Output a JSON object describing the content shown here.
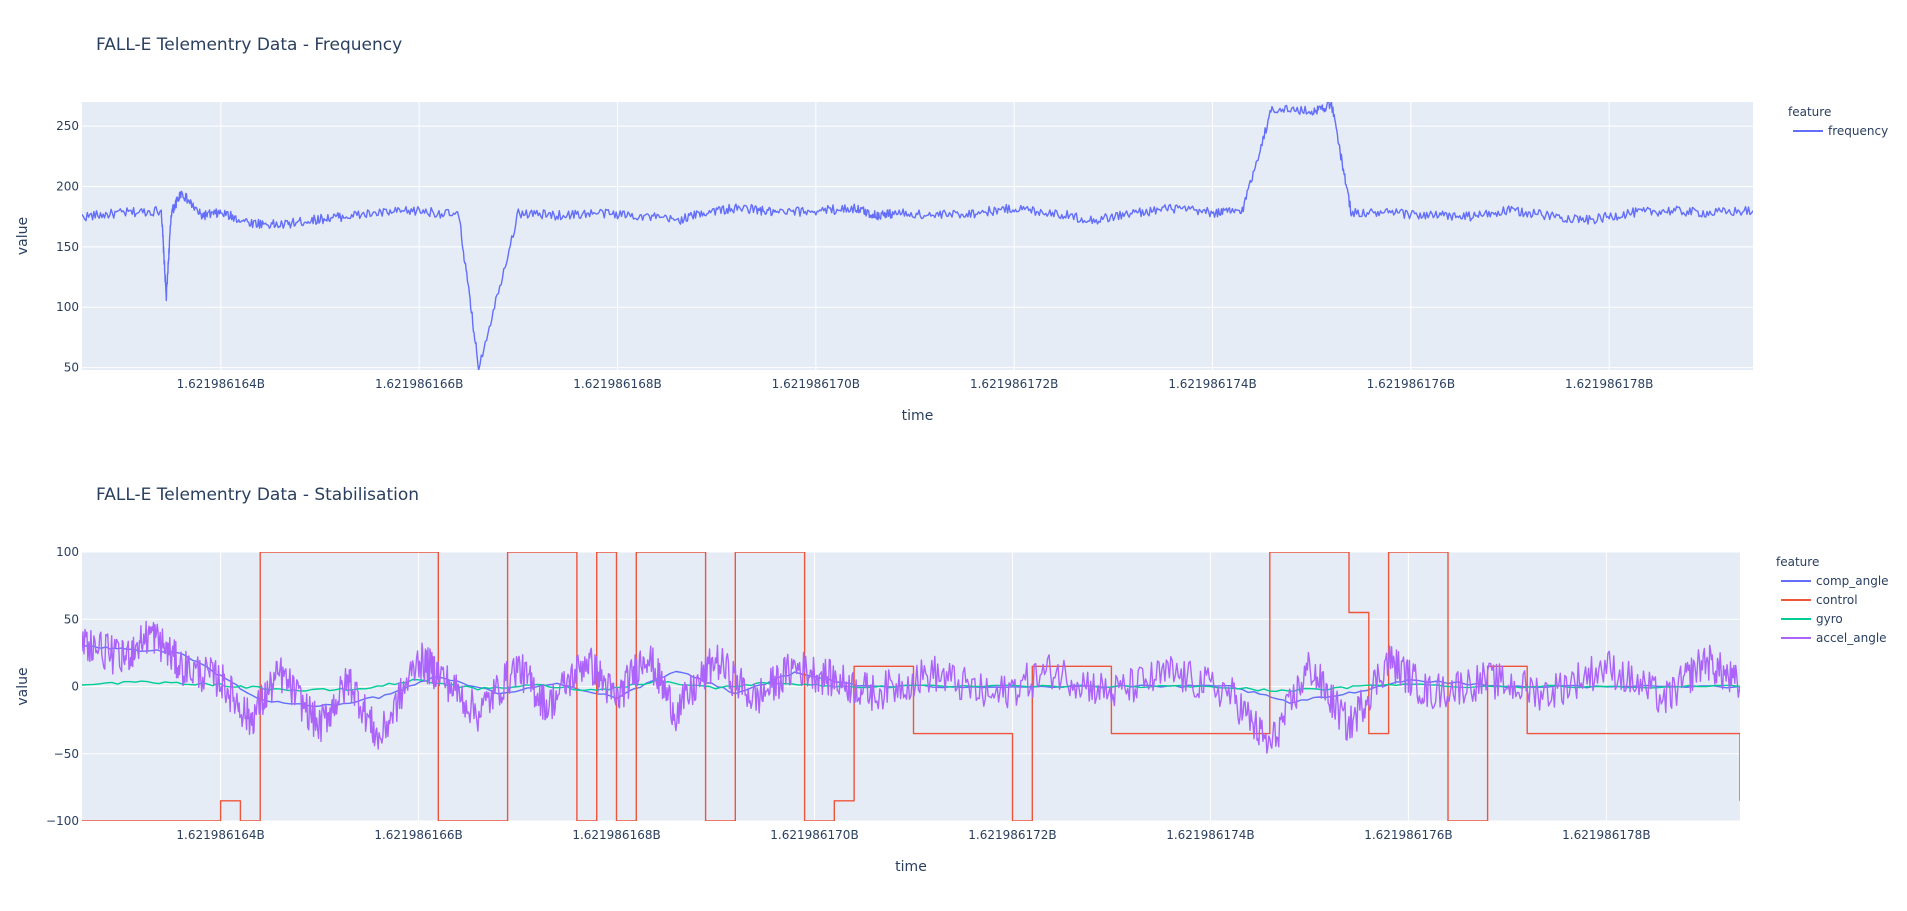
{
  "chart_data": [
    {
      "type": "line",
      "title": "FALL-E Telementry Data - Frequency",
      "xlabel": "time",
      "ylabel": "value",
      "xlim": [
        1621986162.6,
        1621986179.45
      ],
      "ylim": [
        48,
        270
      ],
      "x_ticks": [
        1621986164,
        1621986166,
        1621986168,
        1621986170,
        1621986172,
        1621986174,
        1621986176,
        1621986178
      ],
      "x_tick_labels": [
        "1.621986164B",
        "1.621986166B",
        "1.621986168B",
        "1.621986170B",
        "1.621986172B",
        "1.621986174B",
        "1.621986176B",
        "1.621986178B"
      ],
      "y_ticks": [
        50,
        100,
        150,
        200,
        250
      ],
      "y_tick_labels": [
        "50",
        "100",
        "150",
        "200",
        "250"
      ],
      "grid": true,
      "legend": {
        "title": "feature",
        "placement": "top-right"
      },
      "series": [
        {
          "name": "frequency",
          "color": "#636efa",
          "x": [
            1621986162.6,
            1621986163.0,
            1621986163.4,
            1621986163.45,
            1621986163.5,
            1621986163.6,
            1621986163.8,
            1621986164.0,
            1621986164.3,
            1621986164.6,
            1621986164.9,
            1621986165.2,
            1621986165.6,
            1621986166.0,
            1621986166.4,
            1621986166.6,
            1621986167.0,
            1621986167.4,
            1621986167.8,
            1621986168.2,
            1621986168.6,
            1621986168.95,
            1621986169.3,
            1621986169.6,
            1621986170.0,
            1621986170.4,
            1621986170.6,
            1621986170.8,
            1621986171.2,
            1621986171.6,
            1621986172.0,
            1621986172.4,
            1621986172.8,
            1621986173.2,
            1621986173.6,
            1621986174.0,
            1621986174.3,
            1621986174.6,
            1621986175.0,
            1621986175.2,
            1621986175.4,
            1621986175.8,
            1621986176.2,
            1621986176.6,
            1621986177.0,
            1621986177.4,
            1621986177.8,
            1621986178.2,
            1621986178.6,
            1621986179.0,
            1621986179.45
          ],
          "y": [
            175,
            178,
            180,
            108,
            178,
            195,
            176,
            178,
            170,
            168,
            172,
            175,
            178,
            180,
            176,
            50,
            178,
            176,
            178,
            176,
            172,
            180,
            182,
            178,
            180,
            182,
            176,
            178,
            176,
            178,
            182,
            178,
            172,
            178,
            182,
            178,
            180,
            265,
            262,
            268,
            178,
            178,
            176,
            175,
            180,
            176,
            172,
            178,
            180,
            178,
            180
          ]
        }
      ]
    },
    {
      "type": "line",
      "title": "FALL-E Telementry Data - Stabilisation",
      "xlabel": "time",
      "ylabel": "value",
      "xlim": [
        1621986162.6,
        1621986179.35
      ],
      "ylim": [
        -100,
        100
      ],
      "x_ticks": [
        1621986164,
        1621986166,
        1621986168,
        1621986170,
        1621986172,
        1621986174,
        1621986176,
        1621986178
      ],
      "x_tick_labels": [
        "1.621986164B",
        "1.621986166B",
        "1.621986168B",
        "1.621986170B",
        "1.621986172B",
        "1.621986174B",
        "1.621986176B",
        "1.621986178B"
      ],
      "y_ticks": [
        -100,
        -50,
        0,
        50,
        100
      ],
      "y_tick_labels": [
        "−100",
        "−50",
        "0",
        "50",
        "100"
      ],
      "grid": true,
      "legend": {
        "title": "feature",
        "placement": "top-right"
      },
      "series": [
        {
          "name": "comp_angle",
          "color": "#636efa",
          "x": [
            1621986162.6,
            1621986163.0,
            1621986163.6,
            1621986164.0,
            1621986164.4,
            1621986165.0,
            1621986165.6,
            1621986166.2,
            1621986166.8,
            1621986167.4,
            1621986168.0,
            1621986168.6,
            1621986169.2,
            1621986169.8,
            1621986170.5,
            1621986171.5,
            1621986172.5,
            1621986173.5,
            1621986174.2,
            1621986174.8,
            1621986175.4,
            1621986176.0,
            1621986177.0,
            1621986178.0,
            1621986179.35
          ],
          "y": [
            30,
            28,
            25,
            8,
            -10,
            -15,
            -8,
            8,
            -5,
            2,
            -8,
            12,
            -5,
            10,
            0,
            0,
            0,
            0,
            0,
            -12,
            -5,
            5,
            0,
            0,
            0
          ]
        },
        {
          "name": "control",
          "color": "#EF553B",
          "x": [
            1621986162.6,
            1621986163.9,
            1621986164.0,
            1621986164.2,
            1621986164.4,
            1621986165.0,
            1621986165.6,
            1621986166.05,
            1621986166.2,
            1621986166.5,
            1621986166.9,
            1621986167.4,
            1621986167.6,
            1621986167.8,
            1621986168.0,
            1621986168.2,
            1621986168.5,
            1621986168.9,
            1621986169.2,
            1621986169.5,
            1621986169.9,
            1621986170.1,
            1621986170.2,
            1621986170.4,
            1621986171.0,
            1621986171.8,
            1621986172.0,
            1621986172.2,
            1621986173.0,
            1621986174.0,
            1621986174.6,
            1621986175.0,
            1621986175.4,
            1621986175.6,
            1621986175.8,
            1621986176.1,
            1621986176.4,
            1621986176.8,
            1621986177.2,
            1621986178.0,
            1621986179.35
          ],
          "y": [
            -100,
            -100,
            -85,
            -100,
            100,
            100,
            100,
            100,
            -100,
            -100,
            100,
            100,
            -100,
            100,
            -100,
            100,
            100,
            -100,
            100,
            100,
            -100,
            -100,
            -85,
            15,
            -35,
            -35,
            -100,
            15,
            -35,
            -35,
            100,
            100,
            55,
            -35,
            100,
            100,
            -100,
            15,
            -35,
            -35,
            -85
          ]
        },
        {
          "name": "gyro",
          "color": "#00cc96",
          "x": [
            1621986162.6,
            1621986163.2,
            1621986163.8,
            1621986164.2,
            1621986164.8,
            1621986165.4,
            1621986166.0,
            1621986166.6,
            1621986167.2,
            1621986167.8,
            1621986168.4,
            1621986169.0,
            1621986169.6,
            1621986170.2,
            1621986171.0,
            1621986172.0,
            1621986173.0,
            1621986174.0,
            1621986174.6,
            1621986175.2,
            1621986175.8,
            1621986176.6,
            1621986177.5,
            1621986178.5,
            1621986179.35
          ],
          "y": [
            2,
            3,
            2,
            0,
            -3,
            -2,
            5,
            -2,
            1,
            -3,
            4,
            -1,
            3,
            0,
            0,
            0,
            0,
            0,
            -3,
            -2,
            2,
            0,
            0,
            0,
            0
          ]
        },
        {
          "name": "accel_angle",
          "color": "#ab63fa",
          "x": [
            1621986162.6,
            1621986163.0,
            1621986163.3,
            1621986163.6,
            1621986164.0,
            1621986164.3,
            1621986164.6,
            1621986165.0,
            1621986165.3,
            1621986165.6,
            1621986166.0,
            1621986166.2,
            1621986166.6,
            1621986167.0,
            1621986167.3,
            1621986167.7,
            1621986168.0,
            1621986168.3,
            1621986168.6,
            1621986169.0,
            1621986169.4,
            1621986169.8,
            1621986170.2,
            1621986170.6,
            1621986171.2,
            1621986171.8,
            1621986172.4,
            1621986173.0,
            1621986173.6,
            1621986174.2,
            1621986174.6,
            1621986175.0,
            1621986175.4,
            1621986175.8,
            1621986176.2,
            1621986176.8,
            1621986177.4,
            1621986178.0,
            1621986178.6,
            1621986179.0,
            1621986179.35
          ],
          "y": [
            35,
            20,
            40,
            15,
            5,
            -25,
            10,
            -30,
            5,
            -40,
            20,
            10,
            -20,
            15,
            -15,
            20,
            -10,
            25,
            -20,
            20,
            -10,
            15,
            5,
            -5,
            10,
            -8,
            12,
            -5,
            10,
            -5,
            -45,
            15,
            -30,
            20,
            -5,
            5,
            -5,
            15,
            -10,
            20,
            0
          ]
        }
      ]
    }
  ]
}
